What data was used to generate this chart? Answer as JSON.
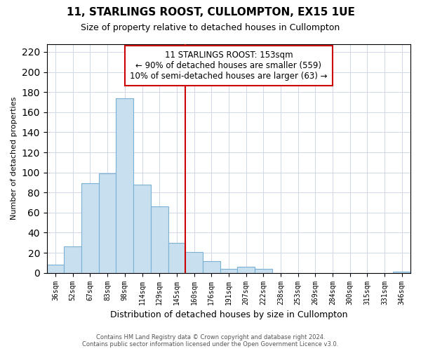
{
  "title": "11, STARLINGS ROOST, CULLOMPTON, EX15 1UE",
  "subtitle": "Size of property relative to detached houses in Cullompton",
  "xlabel": "Distribution of detached houses by size in Cullompton",
  "ylabel": "Number of detached properties",
  "bar_color": "#c8dff0",
  "bar_edge_color": "#7ab0d4",
  "bin_labels": [
    "36sqm",
    "52sqm",
    "67sqm",
    "83sqm",
    "98sqm",
    "114sqm",
    "129sqm",
    "145sqm",
    "160sqm",
    "176sqm",
    "191sqm",
    "207sqm",
    "222sqm",
    "238sqm",
    "253sqm",
    "269sqm",
    "284sqm",
    "300sqm",
    "315sqm",
    "331sqm",
    "346sqm"
  ],
  "bar_heights": [
    8,
    26,
    89,
    99,
    174,
    88,
    66,
    30,
    21,
    12,
    4,
    6,
    4,
    0,
    0,
    0,
    0,
    0,
    0,
    0,
    1
  ],
  "ylim": [
    0,
    228
  ],
  "yticks": [
    0,
    20,
    40,
    60,
    80,
    100,
    120,
    140,
    160,
    180,
    200,
    220
  ],
  "vline_x_bar_index": 8,
  "vline_color": "#cc0000",
  "annotation_title": "11 STARLINGS ROOST: 153sqm",
  "annotation_line1": "← 90% of detached houses are smaller (559)",
  "annotation_line2": "10% of semi-detached houses are larger (63) →",
  "footer_line1": "Contains HM Land Registry data © Crown copyright and database right 2024.",
  "footer_line2": "Contains public sector information licensed under the Open Government Licence v3.0.",
  "background_color": "#ffffff",
  "grid_color": "#d0d8e8"
}
